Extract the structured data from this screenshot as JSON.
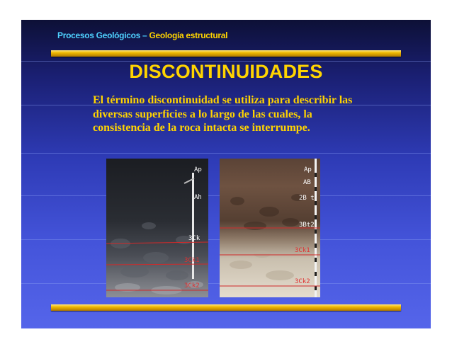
{
  "header": {
    "prefix": "Procesos Geológicos – ",
    "topic": "Geología estructural"
  },
  "title": "DISCONTINUIDADES",
  "body": "El término discontinuidad se utiliza para describir las diversas superficies a lo largo de las cuales, la consistencia de la roca intacta se interrumpe.",
  "photos": {
    "left_labels": [
      "Ap",
      "Ah",
      "3Ck",
      "3Ck1",
      "3Ck2"
    ],
    "right_labels": [
      "Ap",
      "AB",
      "2B t",
      "3Bt2",
      "3Ck1",
      "3Ck2"
    ]
  },
  "colors": {
    "accent_yellow": "#ffd400",
    "header_cyan": "#4fd2ff"
  }
}
